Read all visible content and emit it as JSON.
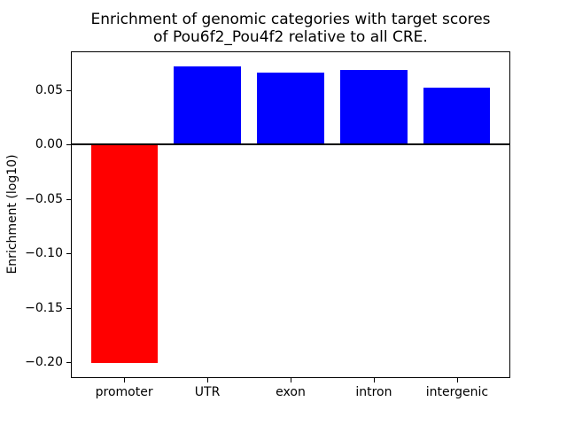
{
  "chart_data": {
    "type": "bar",
    "title": "Enrichment of genomic categories with target scores of Pou6f2_Pou4f2 relative to all CRE.",
    "title_lines": [
      "Enrichment of genomic categories with target scores",
      "of Pou6f2_Pou4f2 relative to all CRE."
    ],
    "xlabel": "",
    "ylabel": "Enrichment (log10)",
    "categories": [
      "promoter",
      "UTR",
      "exon",
      "intron",
      "intergenic"
    ],
    "values": [
      -0.201,
      0.072,
      0.066,
      0.069,
      0.052
    ],
    "bar_colors": [
      "#ff0000",
      "#0000ff",
      "#0000ff",
      "#0000ff",
      "#0000ff"
    ],
    "ytick_values": [
      0.05,
      0.0,
      -0.05,
      -0.1,
      -0.15,
      -0.2
    ],
    "ytick_labels": [
      "0.05",
      "0.00",
      "−0.05",
      "−0.10",
      "−0.15",
      "−0.20"
    ],
    "ylim": [
      -0.2147,
      0.0857
    ],
    "xlim": [
      -0.64,
      4.64
    ],
    "bar_width_units": 0.8,
    "grid": false,
    "legend": null,
    "zero_line": true,
    "axis_color": "#000000",
    "background_color": "#ffffff"
  }
}
